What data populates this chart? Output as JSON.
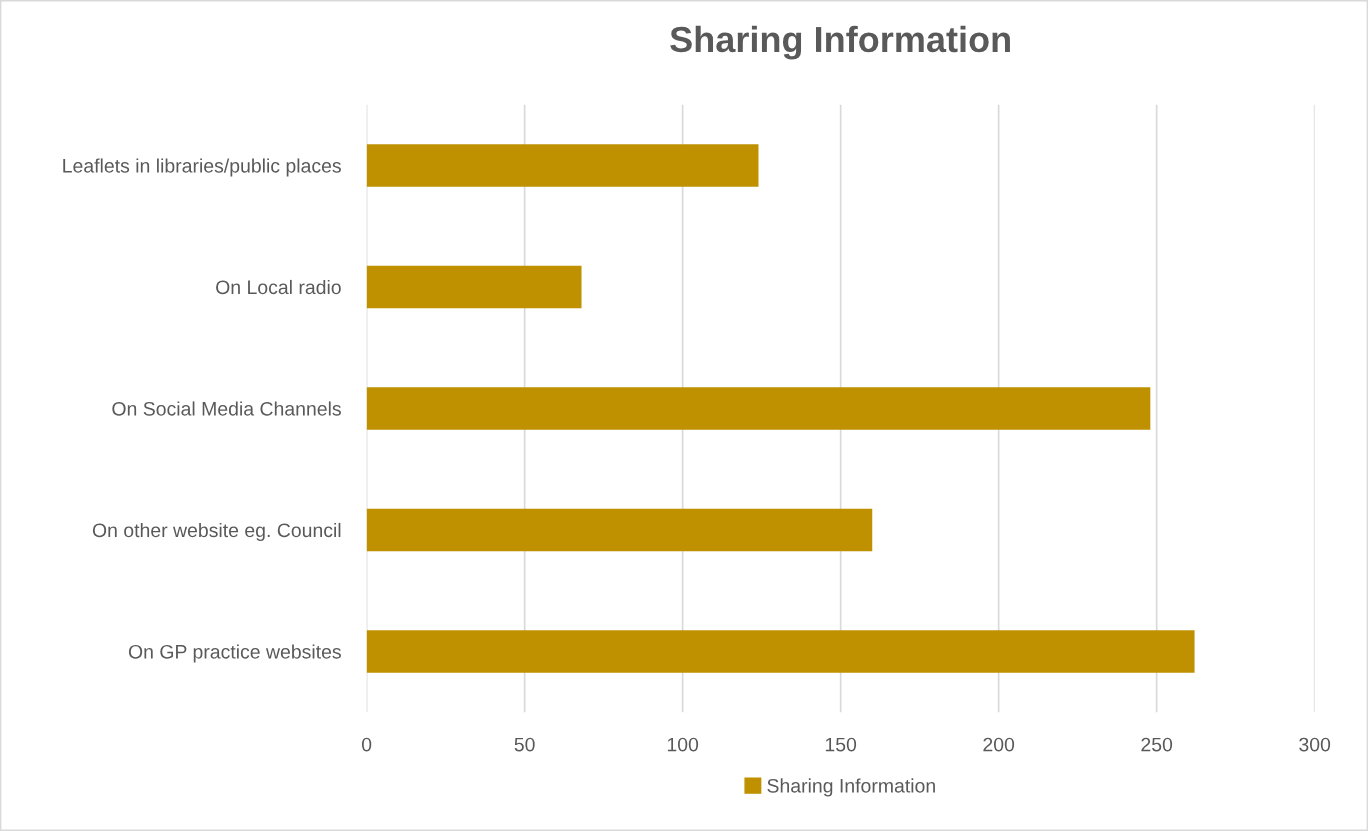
{
  "chart_data": {
    "type": "bar",
    "orientation": "horizontal",
    "title": "Sharing Information",
    "categories": [
      "Leaflets in libraries/public places",
      "On Local radio",
      "On Social Media Channels",
      "On other website eg. Council",
      "On GP practice websites"
    ],
    "series": [
      {
        "name": "Sharing Information",
        "color": "#bf9000",
        "values": [
          124,
          68,
          248,
          160,
          262
        ]
      }
    ],
    "xlim": [
      0,
      300
    ],
    "xticks": [
      0,
      50,
      100,
      150,
      200,
      250,
      300
    ],
    "grid": "x",
    "legend": "bottom"
  }
}
